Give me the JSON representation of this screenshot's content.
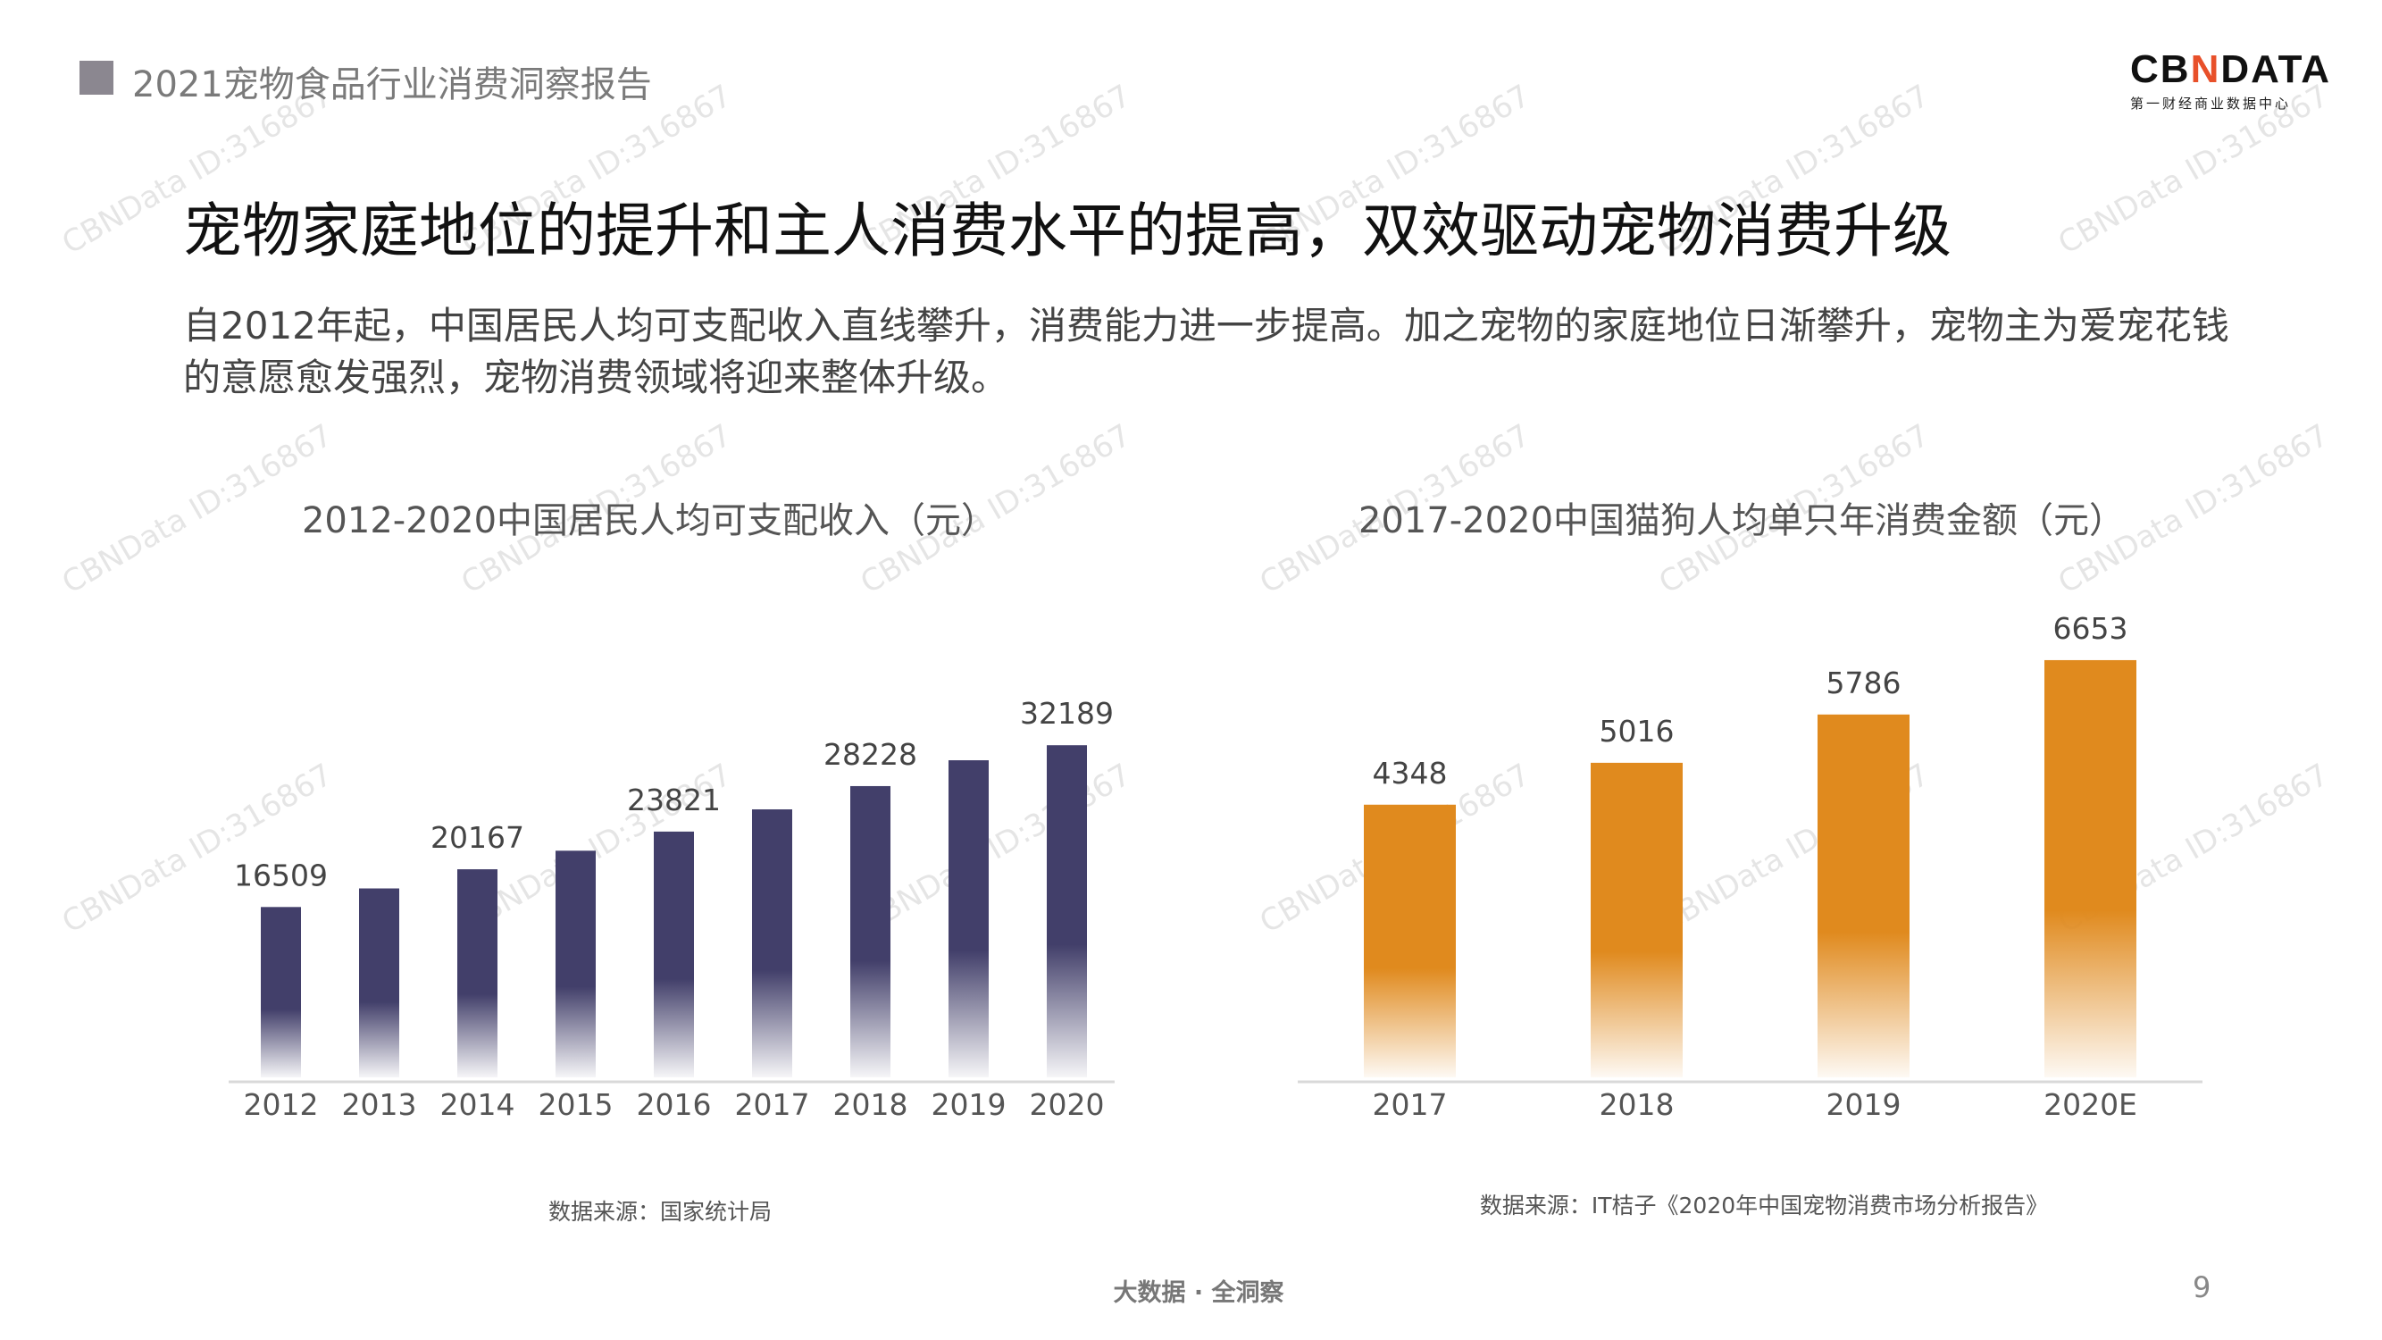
{
  "header": {
    "report_title": "2021宠物食品行业消费洞察报告"
  },
  "logo": {
    "brand": "CBNDATA",
    "tagline": "第一财经商业数据中心"
  },
  "title": "宠物家庭地位的提升和主人消费水平的提高，双效驱动宠物消费升级",
  "paragraph": "自2012年起，中国居民人均可支配收入直线攀升，消费能力进一步提高。加之宠物的家庭地位日渐攀升，宠物主为爱宠花钱的意愿愈发强烈，宠物消费领域将迎来整体升级。",
  "watermark": "CBNData ID:316867",
  "footer": {
    "slogan": "大数据 · 全洞察",
    "page": "9"
  },
  "colors": {
    "navy": "#423f6a",
    "orange": "#e08a1e"
  },
  "chart_data": [
    {
      "type": "bar",
      "title": "2012-2020中国居民人均可支配收入（元）",
      "categories": [
        "2012",
        "2013",
        "2014",
        "2015",
        "2016",
        "2017",
        "2018",
        "2019",
        "2020"
      ],
      "values": [
        16509,
        18311,
        20167,
        21966,
        23821,
        25974,
        28228,
        30733,
        32189
      ],
      "data_labels": {
        "2012": "16509",
        "2014": "20167",
        "2016": "23821",
        "2018": "28228",
        "2020": "32189"
      },
      "source": "数据来源：国家统计局",
      "color": "#423f6a",
      "grid": false
    },
    {
      "type": "bar",
      "title": "2017-2020中国猫狗人均单只年消费金额（元）",
      "categories": [
        "2017",
        "2018",
        "2019",
        "2020E"
      ],
      "values": [
        4348,
        5016,
        5786,
        6653
      ],
      "data_labels": {
        "2017": "4348",
        "2018": "5016",
        "2019": "5786",
        "2020E": "6653"
      },
      "source": "数据来源：IT桔子《2020年中国宠物消费市场分析报告》",
      "color": "#e08a1e",
      "grid": false
    }
  ]
}
